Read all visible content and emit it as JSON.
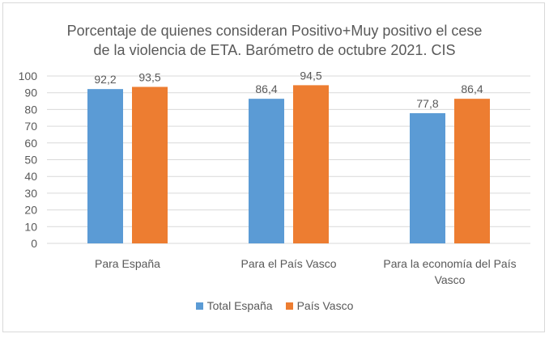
{
  "chart_data": {
    "type": "bar",
    "title_lines": [
      "Porcentaje de quienes consideran Positivo+Muy positivo el cese",
      "de la violencia de ETA. Barómetro de octubre 2021. CIS"
    ],
    "categories": [
      [
        "Para España"
      ],
      [
        "Para el País Vasco"
      ],
      [
        "Para la economía del País",
        "Vasco"
      ]
    ],
    "series": [
      {
        "name": "Total España",
        "color": "#5B9BD5",
        "values": [
          92.2,
          86.4,
          77.8
        ],
        "labels": [
          "92,2",
          "86,4",
          "77,8"
        ]
      },
      {
        "name": "País Vasco",
        "color": "#ED7D31",
        "values": [
          93.5,
          94.5,
          86.4
        ],
        "labels": [
          "93,5",
          "94,5",
          "86,4"
        ]
      }
    ],
    "yticks": [
      "0",
      "10",
      "20",
      "30",
      "40",
      "50",
      "60",
      "70",
      "80",
      "90",
      "100"
    ],
    "ylim": [
      0,
      100
    ],
    "grid": true,
    "legend": "bottom"
  }
}
